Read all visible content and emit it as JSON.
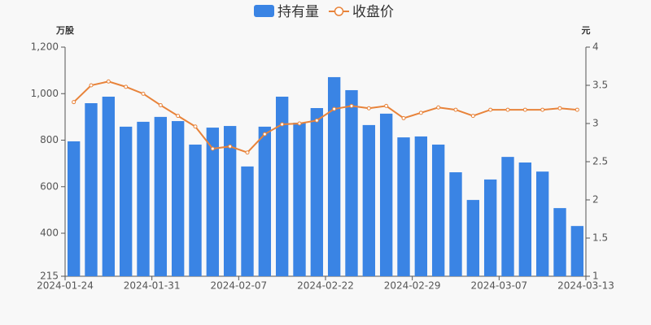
{
  "chart_data": {
    "type": "bar-line",
    "legend_position": "top",
    "y_unit": "万股",
    "y2_unit": "元",
    "categories": [
      "2024-01-24",
      null,
      null,
      null,
      null,
      "2024-01-31",
      null,
      null,
      null,
      null,
      "2024-02-07",
      null,
      null,
      null,
      null,
      "2024-02-22",
      null,
      null,
      null,
      null,
      "2024-02-29",
      null,
      null,
      null,
      null,
      "2024-03-07",
      null,
      null,
      null,
      "2024-03-13"
    ],
    "series": [
      {
        "name": "持有量",
        "type": "bar",
        "color": "#3a84e4",
        "values": [
          795,
          959,
          987,
          858,
          879,
          900,
          882,
          781,
          854,
          861,
          687,
          858,
          987,
          875,
          938,
          1071,
          1015,
          865,
          914,
          812,
          816,
          781,
          662,
          543,
          631,
          728,
          704,
          665,
          508,
          431
        ]
      },
      {
        "name": "收盘价",
        "type": "line",
        "axis": "y2",
        "color": "#e8833a",
        "values": [
          3.28,
          3.5,
          3.55,
          3.48,
          3.39,
          3.24,
          3.1,
          2.96,
          2.67,
          2.7,
          2.62,
          2.86,
          2.99,
          3.0,
          3.04,
          3.19,
          3.23,
          3.2,
          3.23,
          3.07,
          3.14,
          3.21,
          3.18,
          3.1,
          3.18,
          3.18,
          3.18,
          3.18,
          3.2,
          3.18
        ]
      }
    ],
    "ylim": [
      215,
      1200
    ],
    "yticks": [
      215,
      400,
      600,
      800,
      {
        "value": 1000,
        "label": "1,000"
      },
      {
        "value": 1200,
        "label": "1,200"
      }
    ],
    "y2lim": [
      1,
      4
    ],
    "y2ticks": [
      1,
      1.5,
      2,
      2.5,
      3,
      3.5,
      4
    ]
  }
}
